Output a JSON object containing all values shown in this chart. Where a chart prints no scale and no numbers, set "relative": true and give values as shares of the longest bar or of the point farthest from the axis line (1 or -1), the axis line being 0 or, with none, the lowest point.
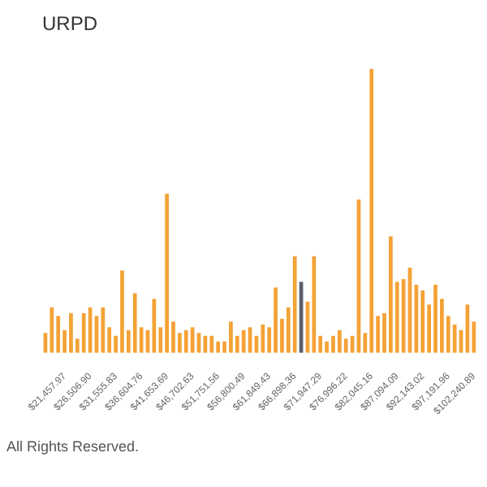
{
  "chart_data": {
    "type": "bar",
    "title": "URPD",
    "relative": true,
    "categories": [
      null,
      null,
      null,
      "$21,457.97",
      null,
      null,
      null,
      "$26,506.90",
      null,
      null,
      null,
      "$31,555.83",
      null,
      null,
      null,
      "$36,604.76",
      null,
      null,
      null,
      "$41,653.69",
      null,
      null,
      null,
      "$46,702.63",
      null,
      null,
      null,
      "$51,751.56",
      null,
      null,
      null,
      "$56,800.49",
      null,
      null,
      null,
      "$61,849.43",
      null,
      null,
      null,
      "$66,898.36",
      null,
      null,
      null,
      "$71,947.29",
      null,
      null,
      null,
      "$76,996.22",
      null,
      null,
      null,
      "$82,045.16",
      null,
      null,
      null,
      "$87,094.09",
      null,
      null,
      null,
      "$92,143.02",
      null,
      null,
      null,
      "$97,191.96",
      null,
      null,
      null,
      "$102,240.89"
    ],
    "values": [
      0.07,
      0.16,
      0.13,
      0.08,
      0.14,
      0.05,
      0.14,
      0.16,
      0.13,
      0.16,
      0.09,
      0.06,
      0.29,
      0.08,
      0.21,
      0.09,
      0.08,
      0.19,
      0.09,
      0.56,
      0.11,
      0.07,
      0.08,
      0.09,
      0.07,
      0.06,
      0.06,
      0.04,
      0.04,
      0.11,
      0.06,
      0.08,
      0.09,
      0.06,
      0.1,
      0.09,
      0.23,
      0.12,
      0.16,
      0.34,
      0.25,
      0.18,
      0.34,
      0.06,
      0.04,
      0.06,
      0.08,
      0.05,
      0.06,
      0.54,
      0.07,
      1,
      0.13,
      0.14,
      0.41,
      0.25,
      0.26,
      0.3,
      0.24,
      0.22,
      0.17,
      0.24,
      0.19,
      0.13,
      0.1,
      0.08,
      0.17,
      0.11
    ],
    "colors": [
      "#f4a236",
      "#f4a236",
      "#f4a236",
      "#f4a236",
      "#f4a236",
      "#f4a236",
      "#f4a236",
      "#f4a236",
      "#f4a236",
      "#f4a236",
      "#f4a236",
      "#f4a236",
      "#f4a236",
      "#f4a236",
      "#f4a236",
      "#f4a236",
      "#f4a236",
      "#f4a236",
      "#f4a236",
      "#f4a236",
      "#f4a236",
      "#f4a236",
      "#f4a236",
      "#f4a236",
      "#f4a236",
      "#f4a236",
      "#f4a236",
      "#f4a236",
      "#f4a236",
      "#f4a236",
      "#f4a236",
      "#f4a236",
      "#f4a236",
      "#f4a236",
      "#f4a236",
      "#f4a236",
      "#f4a236",
      "#f4a236",
      "#f4a236",
      "#f4a236",
      "#55606b",
      "#f4a236",
      "#f4a236",
      "#f4a236",
      "#f4a236",
      "#f4a236",
      "#f4a236",
      "#f4a236",
      "#f4a236",
      "#f4a236",
      "#f4a236",
      "#f4a236",
      "#f4a236",
      "#f4a236",
      "#f4a236",
      "#f4a236",
      "#f4a236",
      "#f4a236",
      "#f4a236",
      "#f4a236",
      "#f4a236",
      "#f4a236",
      "#f4a236",
      "#f4a236",
      "#f4a236",
      "#f4a236",
      "#f4a236",
      "#f4a236"
    ],
    "annotations": [
      "All Rights Reserved."
    ]
  }
}
